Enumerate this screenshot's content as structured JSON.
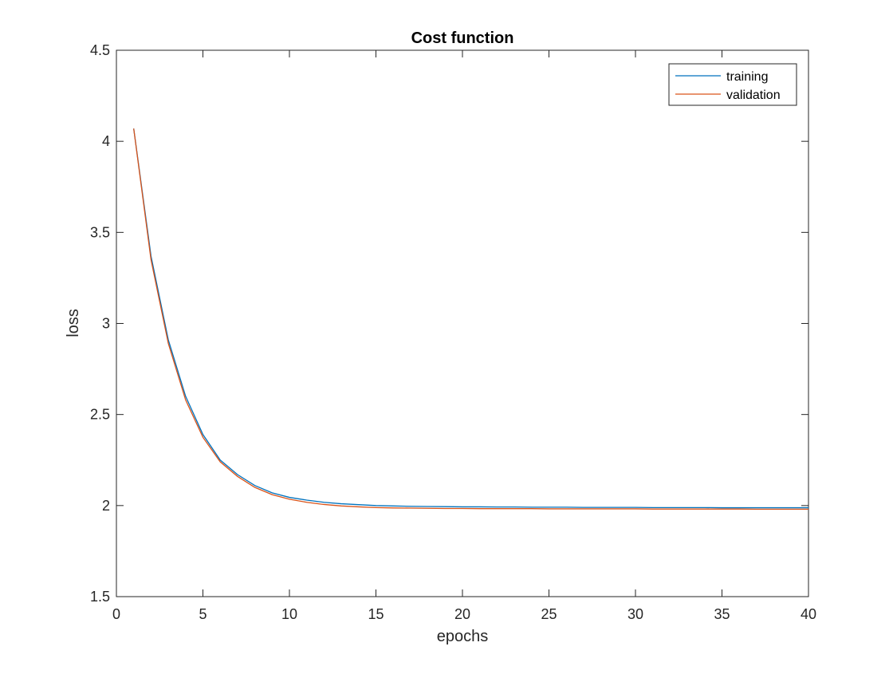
{
  "chart_data": {
    "type": "line",
    "title": "Cost function",
    "xlabel": "epochs",
    "ylabel": "loss",
    "xlim": [
      0,
      40
    ],
    "ylim": [
      1.5,
      4.5
    ],
    "xticks": [
      0,
      5,
      10,
      15,
      20,
      25,
      30,
      35,
      40
    ],
    "xtick_labels": [
      "0",
      "5",
      "10",
      "15",
      "20",
      "25",
      "30",
      "35",
      "40"
    ],
    "yticks": [
      1.5,
      2,
      2.5,
      3,
      3.5,
      4,
      4.5
    ],
    "ytick_labels": [
      "1.5",
      "2",
      "2.5",
      "3",
      "3.5",
      "4",
      "4.5"
    ],
    "grid": false,
    "legend_position": "top-right",
    "x": [
      1,
      2,
      3,
      4,
      5,
      6,
      7,
      8,
      9,
      10,
      11,
      12,
      13,
      14,
      15,
      16,
      17,
      18,
      19,
      20,
      21,
      22,
      23,
      24,
      25,
      26,
      27,
      28,
      29,
      30,
      31,
      32,
      33,
      34,
      35,
      36,
      37,
      38,
      39,
      40
    ],
    "series": [
      {
        "name": "training",
        "color": "#0072BD",
        "values": [
          4.07,
          3.37,
          2.91,
          2.6,
          2.39,
          2.25,
          2.17,
          2.11,
          2.07,
          2.045,
          2.03,
          2.018,
          2.01,
          2.005,
          2.0,
          1.998,
          1.996,
          1.995,
          1.994,
          1.993,
          1.993,
          1.992,
          1.992,
          1.991,
          1.991,
          1.991,
          1.99,
          1.99,
          1.99,
          1.99,
          1.989,
          1.989,
          1.989,
          1.989,
          1.988,
          1.988,
          1.988,
          1.988,
          1.988,
          1.988
        ]
      },
      {
        "name": "validation",
        "color": "#D95319",
        "values": [
          4.07,
          3.35,
          2.89,
          2.58,
          2.375,
          2.24,
          2.16,
          2.1,
          2.06,
          2.035,
          2.018,
          2.006,
          1.998,
          1.993,
          1.989,
          1.987,
          1.986,
          1.985,
          1.984,
          1.984,
          1.983,
          1.983,
          1.983,
          1.983,
          1.982,
          1.982,
          1.982,
          1.982,
          1.982,
          1.982,
          1.981,
          1.981,
          1.981,
          1.981,
          1.981,
          1.981,
          1.98,
          1.98,
          1.98,
          1.98
        ]
      }
    ]
  }
}
